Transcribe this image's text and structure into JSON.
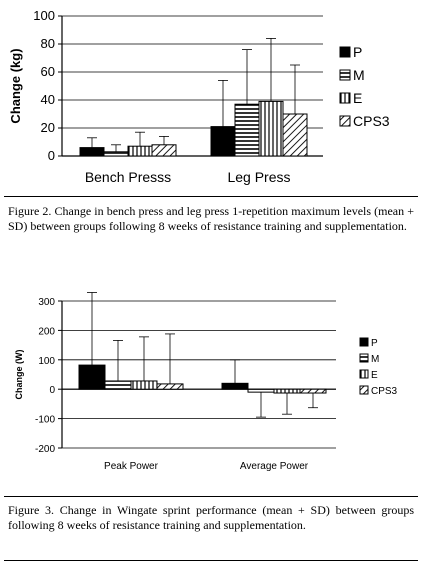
{
  "chart_data": [
    {
      "type": "bar",
      "ylabel": "Change (kg)",
      "ylim": [
        0,
        100
      ],
      "yticks": [
        0,
        20,
        40,
        60,
        80,
        100
      ],
      "grid": true,
      "legend_position": "right",
      "categories": [
        "Bench Presss",
        "Leg Press"
      ],
      "series": [
        {
          "name": "P",
          "pattern": "solid",
          "values": [
            6,
            21
          ],
          "sd": [
            7,
            33
          ]
        },
        {
          "name": "M",
          "pattern": "horizontal",
          "values": [
            3,
            37
          ],
          "sd": [
            5,
            39
          ]
        },
        {
          "name": "E",
          "pattern": "vertical",
          "values": [
            7,
            39
          ],
          "sd": [
            10,
            45
          ]
        },
        {
          "name": "CPS3",
          "pattern": "diagonal",
          "values": [
            8,
            30
          ],
          "sd": [
            6,
            35
          ]
        }
      ]
    },
    {
      "type": "bar",
      "ylabel": "Change (W)",
      "ylim": [
        -200,
        300
      ],
      "yticks": [
        -200,
        -100,
        0,
        100,
        200,
        300
      ],
      "grid": true,
      "legend_position": "right",
      "categories": [
        "Peak Power",
        "Average Power"
      ],
      "series": [
        {
          "name": "P",
          "pattern": "solid",
          "values": [
            82,
            20
          ],
          "sd": [
            247,
            80
          ]
        },
        {
          "name": "M",
          "pattern": "horizontal",
          "values": [
            28,
            -10
          ],
          "sd": [
            138,
            85
          ]
        },
        {
          "name": "E",
          "pattern": "vertical",
          "values": [
            28,
            -13
          ],
          "sd": [
            150,
            72
          ]
        },
        {
          "name": "CPS3",
          "pattern": "diagonal",
          "values": [
            18,
            -13
          ],
          "sd": [
            170,
            50
          ]
        }
      ]
    }
  ],
  "captions": {
    "fig2": "Figure 2. Change in bench press and leg press 1-repetition maximum levels (mean + SD) between groups following 8 weeks of resistance training and supplementation.",
    "fig3": "Figure 3. Change in Wingate sprint performance (mean + SD) between groups following 8 weeks of resistance training and supplementation."
  }
}
